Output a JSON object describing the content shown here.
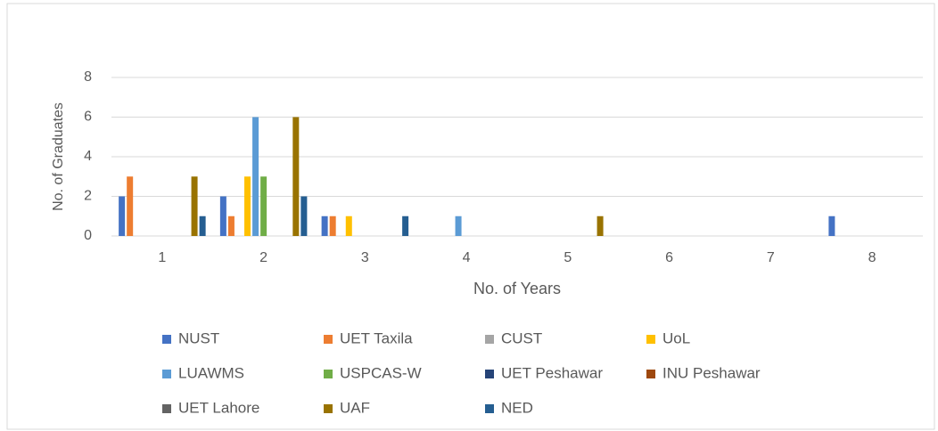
{
  "chart_data": {
    "type": "bar",
    "categories": [
      "1",
      "2",
      "3",
      "4",
      "5",
      "6",
      "7",
      "8"
    ],
    "xlabel": "No. of Years",
    "ylabel": "No. of Graduates",
    "ylim": [
      0,
      8
    ],
    "yticks": [
      0,
      2,
      4,
      6,
      8
    ],
    "grid": true,
    "legend": "bottom",
    "series": [
      {
        "name": "NUST",
        "color": "#4472c4",
        "values": [
          2,
          2,
          1,
          0,
          0,
          0,
          0,
          1
        ]
      },
      {
        "name": "UET Taxila",
        "color": "#ed7d31",
        "values": [
          3,
          1,
          1,
          0,
          0,
          0,
          0,
          0
        ]
      },
      {
        "name": "CUST",
        "color": "#a5a5a5",
        "values": [
          0,
          0,
          0,
          0,
          0,
          0,
          0,
          0
        ]
      },
      {
        "name": "UoL",
        "color": "#ffc000",
        "values": [
          0,
          3,
          1,
          0,
          0,
          0,
          0,
          0
        ]
      },
      {
        "name": "LUAWMS",
        "color": "#5b9bd5",
        "values": [
          0,
          6,
          0,
          1,
          0,
          0,
          0,
          0
        ]
      },
      {
        "name": "USPCAS-W",
        "color": "#70ad47",
        "values": [
          0,
          3,
          0,
          0,
          0,
          0,
          0,
          0
        ]
      },
      {
        "name": "UET Peshawar",
        "color": "#264478",
        "values": [
          0,
          0,
          0,
          0,
          0,
          0,
          0,
          0
        ]
      },
      {
        "name": "INU Peshawar",
        "color": "#9e480e",
        "values": [
          0,
          0,
          0,
          0,
          0,
          0,
          0,
          0
        ]
      },
      {
        "name": "UET Lahore",
        "color": "#636363",
        "values": [
          0,
          0,
          0,
          0,
          0,
          0,
          0,
          0
        ]
      },
      {
        "name": "UAF",
        "color": "#997300",
        "values": [
          3,
          6,
          0,
          0,
          1,
          0,
          0,
          0
        ]
      },
      {
        "name": "NED",
        "color": "#255e91",
        "values": [
          1,
          2,
          1,
          0,
          0,
          0,
          0,
          0
        ]
      }
    ]
  }
}
